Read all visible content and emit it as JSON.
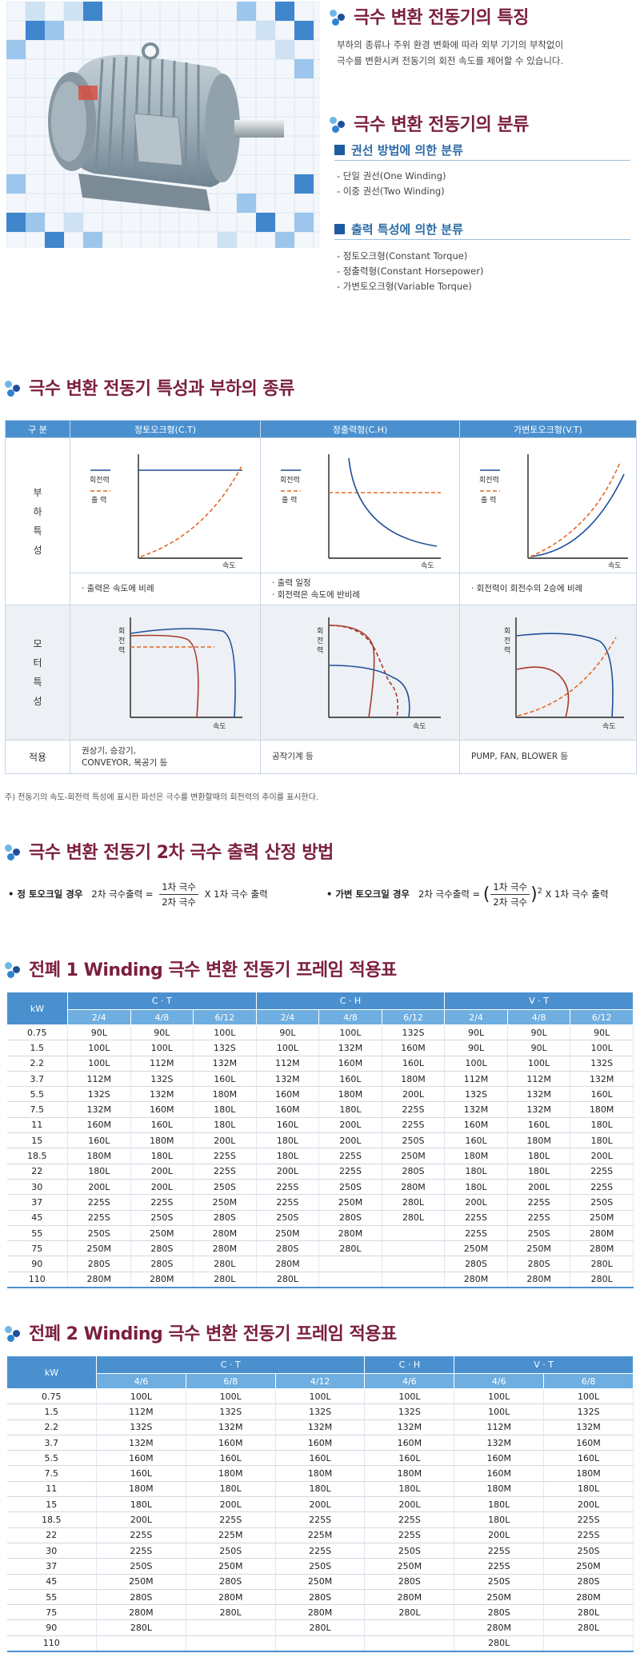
{
  "features": {
    "title": "극수 변환 전동기의 특징",
    "desc": [
      "부하의 종류나 주위 환경 변화에 따라 외부 기기의 부착없이",
      "극수를 변환시켜 전동기의 회전 속도를 제어할 수 있습니다."
    ]
  },
  "classification": {
    "title": "극수 변환 전동기의 분류",
    "winding": {
      "title": "권선 방법에 의한 분류",
      "items": [
        "- 단일 권선(One Winding)",
        "- 이중 권선(Two Winding)"
      ]
    },
    "output": {
      "title": "출력 특성에 의한 분류",
      "items": [
        "- 정토오크형(Constant Torque)",
        "- 정출력형(Constant Horsepower)",
        "- 가변토오크형(Variable Torque)"
      ]
    }
  },
  "load_section": {
    "title": "극수 변환 전동기 특성과 부하의 종류",
    "headers": [
      "구 분",
      "정토오크형(C.T)",
      "정출력형(C.H)",
      "가변토오크형(V.T)"
    ],
    "row_load": "부\n하\n특\n성",
    "row_motor": "모\n터\n특\n성",
    "row_app": "적용",
    "legend": {
      "torque": "회전력",
      "output": "출 력"
    },
    "axis_speed": "속도",
    "axis_torque": "회\n전\n력",
    "load_notes": [
      [
        "· 출력은 속도에 비례"
      ],
      [
        "· 출력 일정",
        "· 회전력은 속도에 반비례"
      ],
      [
        "· 회전력이 회전수의 2승에 비례"
      ]
    ],
    "applications": [
      [
        "권상기, 승강기,",
        "CONVEYOR, 목공기 등"
      ],
      [
        "공작기계 등"
      ],
      [
        "PUMP, FAN, BLOWER 등"
      ]
    ],
    "footnote": "주) 전동기의 속도-회전력 특성에 표시한 파선은 극수를 변환할때의 회전력의 추이를 표시한다."
  },
  "calc": {
    "title": "극수 변환 전동기 2차 극수 출력 산정 방법",
    "ct_label": "• 정 토오크일 경우",
    "ct_lhs": "2차 극수출력 =",
    "vt_label": "• 가변 토오크일 경우",
    "vt_lhs": "2차 극수출력 =",
    "num": "1차 극수",
    "den": "2차 극수",
    "rhs": "X 1차 극수 출력",
    "open": "(",
    "close": ")",
    "power": "2"
  },
  "table1": {
    "title": "전폐 1 Winding 극수 변환 전동기 프레임 적용표",
    "kw_label": "kW",
    "groups": [
      "C · T",
      "C · H",
      "V · T"
    ],
    "subs": [
      "2/4",
      "4/8",
      "6/12",
      "2/4",
      "4/8",
      "6/12",
      "2/4",
      "4/8",
      "6/12"
    ],
    "rows": [
      [
        "0.75",
        "90L",
        "90L",
        "100L",
        "90L",
        "100L",
        "132S",
        "90L",
        "90L",
        "90L"
      ],
      [
        "1.5",
        "100L",
        "100L",
        "132S",
        "100L",
        "132M",
        "160M",
        "90L",
        "90L",
        "100L"
      ],
      [
        "2.2",
        "100L",
        "112M",
        "132M",
        "112M",
        "160M",
        "160L",
        "100L",
        "100L",
        "132S"
      ],
      [
        "3.7",
        "112M",
        "132S",
        "160L",
        "132M",
        "160L",
        "180M",
        "112M",
        "112M",
        "132M"
      ],
      [
        "5.5",
        "132S",
        "132M",
        "180M",
        "160M",
        "180M",
        "200L",
        "132S",
        "132M",
        "160L"
      ],
      [
        "7.5",
        "132M",
        "160M",
        "180L",
        "160M",
        "180L",
        "225S",
        "132M",
        "132M",
        "180M"
      ],
      [
        "11",
        "160M",
        "160L",
        "180L",
        "160L",
        "200L",
        "225S",
        "160M",
        "160L",
        "180L"
      ],
      [
        "15",
        "160L",
        "180M",
        "200L",
        "180L",
        "200L",
        "250S",
        "160L",
        "180M",
        "180L"
      ],
      [
        "18.5",
        "180M",
        "180L",
        "225S",
        "180L",
        "225S",
        "250M",
        "180M",
        "180L",
        "200L"
      ],
      [
        "22",
        "180L",
        "200L",
        "225S",
        "200L",
        "225S",
        "280S",
        "180L",
        "180L",
        "225S"
      ],
      [
        "30",
        "200L",
        "200L",
        "250S",
        "225S",
        "250S",
        "280M",
        "180L",
        "200L",
        "225S"
      ],
      [
        "37",
        "225S",
        "225S",
        "250M",
        "225S",
        "250M",
        "280L",
        "200L",
        "225S",
        "250S"
      ],
      [
        "45",
        "225S",
        "250S",
        "280S",
        "250S",
        "280S",
        "280L",
        "225S",
        "225S",
        "250M"
      ],
      [
        "55",
        "250S",
        "250M",
        "280M",
        "250M",
        "280M",
        "",
        "225S",
        "250S",
        "280M"
      ],
      [
        "75",
        "250M",
        "280S",
        "280M",
        "280S",
        "280L",
        "",
        "250M",
        "250M",
        "280M"
      ],
      [
        "90",
        "280S",
        "280S",
        "280L",
        "280M",
        "",
        "",
        "280S",
        "280S",
        "280L"
      ],
      [
        "110",
        "280M",
        "280M",
        "280L",
        "280L",
        "",
        "",
        "280M",
        "280M",
        "280L"
      ]
    ]
  },
  "table2": {
    "title": "전폐 2 Winding 극수 변환 전동기 프레임 적용표",
    "kw_label": "kW",
    "groups": [
      "C · T",
      "C · H",
      "V · T"
    ],
    "subs": [
      "4/6",
      "6/8",
      "4/12",
      "4/6",
      "4/6",
      "6/8"
    ],
    "rows": [
      [
        "0.75",
        "100L",
        "100L",
        "100L",
        "100L",
        "100L",
        "100L"
      ],
      [
        "1.5",
        "112M",
        "132S",
        "132S",
        "132S",
        "100L",
        "132S"
      ],
      [
        "2.2",
        "132S",
        "132M",
        "132M",
        "132M",
        "112M",
        "132M"
      ],
      [
        "3.7",
        "132M",
        "160M",
        "160M",
        "160M",
        "132M",
        "160M"
      ],
      [
        "5.5",
        "160M",
        "160L",
        "160L",
        "160L",
        "160M",
        "160L"
      ],
      [
        "7.5",
        "160L",
        "180M",
        "180M",
        "180M",
        "160M",
        "180M"
      ],
      [
        "11",
        "180M",
        "180L",
        "180L",
        "180L",
        "180M",
        "180L"
      ],
      [
        "15",
        "180L",
        "200L",
        "200L",
        "200L",
        "180L",
        "200L"
      ],
      [
        "18.5",
        "200L",
        "225S",
        "225S",
        "225S",
        "180L",
        "225S"
      ],
      [
        "22",
        "225S",
        "225M",
        "225M",
        "225S",
        "200L",
        "225S"
      ],
      [
        "30",
        "225S",
        "250S",
        "225S",
        "250S",
        "225S",
        "250S"
      ],
      [
        "37",
        "250S",
        "250M",
        "250S",
        "250M",
        "225S",
        "250M"
      ],
      [
        "45",
        "250M",
        "280S",
        "250M",
        "280S",
        "250S",
        "280S"
      ],
      [
        "55",
        "280S",
        "280M",
        "280S",
        "280M",
        "250M",
        "280M"
      ],
      [
        "75",
        "280M",
        "280L",
        "280M",
        "280L",
        "280S",
        "280L"
      ],
      [
        "90",
        "280L",
        "",
        "280L",
        "",
        "280M",
        "280L"
      ],
      [
        "110",
        "",
        "",
        "",
        "",
        "280L",
        ""
      ]
    ]
  }
}
